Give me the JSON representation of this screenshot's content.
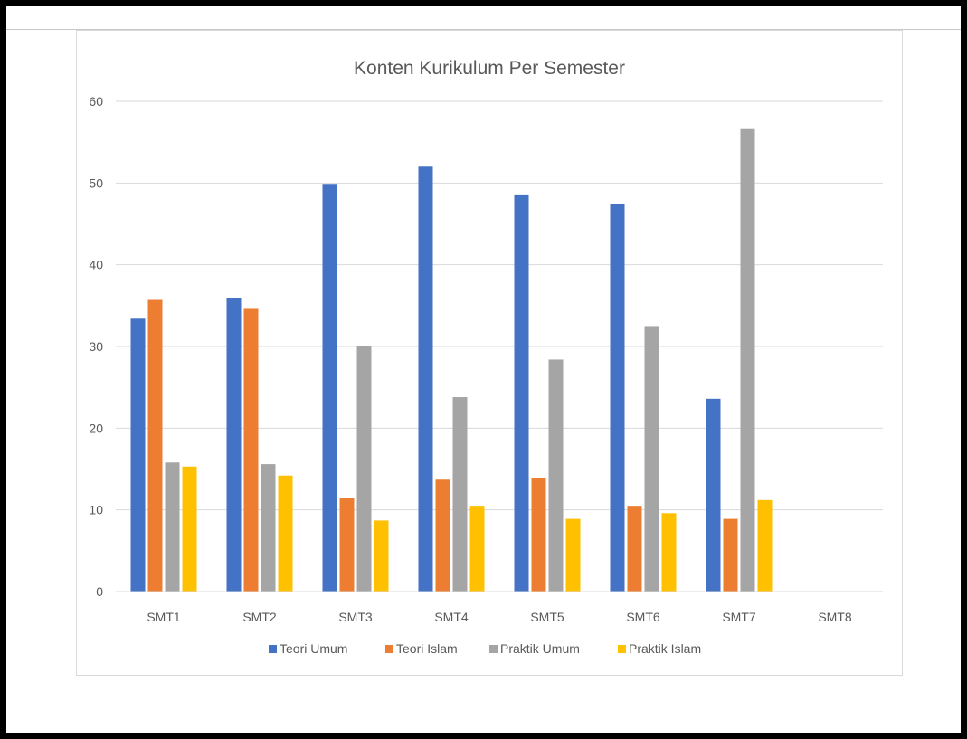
{
  "chart_data": {
    "type": "bar",
    "title": "Konten Kurikulum Per Semester",
    "xlabel": "",
    "ylabel": "",
    "categories": [
      "SMT1",
      "SMT2",
      "SMT3",
      "SMT4",
      "SMT5",
      "SMT6",
      "SMT7",
      "SMT8"
    ],
    "series": [
      {
        "name": "Teori Umum",
        "color": "#4472c4",
        "values": [
          33.4,
          35.9,
          49.9,
          52.0,
          48.5,
          47.4,
          23.6,
          null
        ]
      },
      {
        "name": "Teori Islam",
        "color": "#ed7d31",
        "values": [
          35.7,
          34.6,
          11.4,
          13.7,
          13.9,
          10.5,
          8.9,
          null
        ]
      },
      {
        "name": "Praktik Umum",
        "color": "#a5a5a5",
        "values": [
          15.8,
          15.6,
          30.0,
          23.8,
          28.4,
          32.5,
          56.6,
          null
        ]
      },
      {
        "name": "Praktik Islam",
        "color": "#ffc000",
        "values": [
          15.3,
          14.2,
          8.7,
          10.5,
          8.9,
          9.6,
          11.2,
          null
        ]
      }
    ],
    "ylim": [
      0,
      60
    ],
    "yticks": [
      0,
      10,
      20,
      30,
      40,
      50,
      60
    ],
    "grid": true,
    "legend_position": "bottom"
  }
}
